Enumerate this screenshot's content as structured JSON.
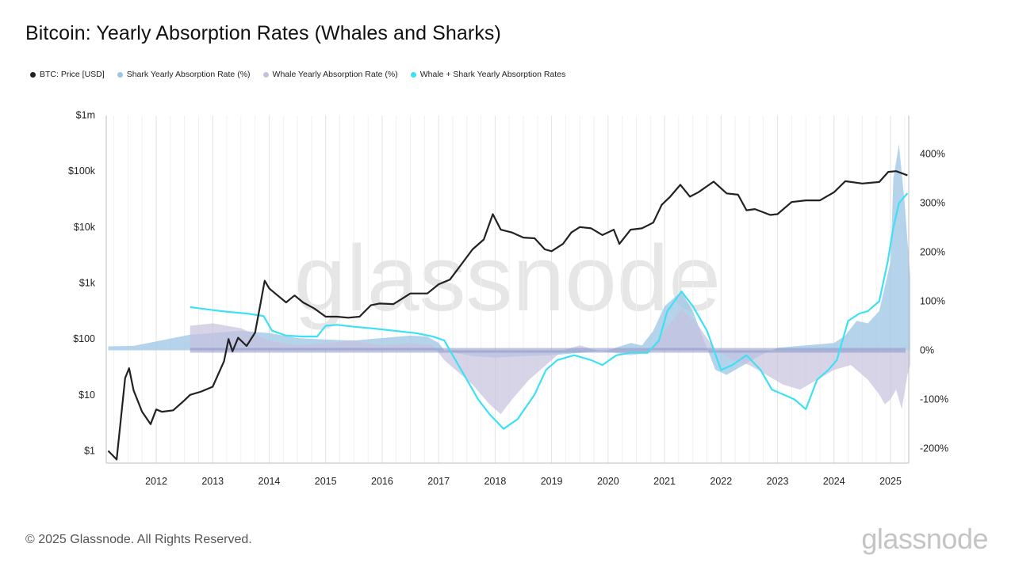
{
  "header": {
    "title": "Bitcoin: Yearly Absorption Rates (Whales and Sharks)"
  },
  "legend": [
    {
      "label": "BTC: Price [USD]",
      "color": "#222222"
    },
    {
      "label": "Shark Yearly Absorption Rate (%)",
      "color": "#9cc6e4"
    },
    {
      "label": "Whale Yearly Absorption Rate (%)",
      "color": "#c6c2de"
    },
    {
      "label": "Whale + Shark Yearly Absorption Rates",
      "color": "#3ee0f4"
    }
  ],
  "watermark": "glassnode",
  "footer": {
    "copyright": "© 2025 Glassnode. All Rights Reserved.",
    "brand": "glassnode"
  },
  "chart_data": {
    "type": "line",
    "title": "Bitcoin: Yearly Absorption Rates (Whales and Sharks)",
    "x_axis": {
      "type": "time",
      "range": [
        2011.15,
        2025.35
      ],
      "tick_labels": [
        "2012",
        "2013",
        "2014",
        "2015",
        "2016",
        "2017",
        "2018",
        "2019",
        "2020",
        "2021",
        "2022",
        "2023",
        "2024",
        "2025"
      ]
    },
    "y_left": {
      "scale": "log",
      "range": [
        1,
        1000000
      ],
      "tick_labels": [
        "$1",
        "$10",
        "$100",
        "$1k",
        "$10k",
        "$100k",
        "$1m"
      ]
    },
    "y_right": {
      "scale": "linear",
      "range": [
        -220,
        440
      ],
      "tick_labels": [
        "-200%",
        "-100%",
        "0%",
        "100%",
        "200%",
        "300%",
        "400%"
      ]
    },
    "grid": "vertical",
    "legend_position": "top-left",
    "series": [
      {
        "name": "BTC: Price [USD]",
        "axis": "left",
        "color": "#222222",
        "x": [
          2011.15,
          2011.3,
          2011.45,
          2011.52,
          2011.6,
          2011.75,
          2011.9,
          2012.0,
          2012.1,
          2012.3,
          2012.5,
          2012.6,
          2012.8,
          2013.0,
          2013.2,
          2013.28,
          2013.35,
          2013.45,
          2013.6,
          2013.75,
          2013.85,
          2013.92,
          2014.0,
          2014.15,
          2014.3,
          2014.45,
          2014.6,
          2014.8,
          2015.0,
          2015.2,
          2015.4,
          2015.6,
          2015.8,
          2015.95,
          2016.2,
          2016.5,
          2016.8,
          2017.0,
          2017.2,
          2017.45,
          2017.6,
          2017.8,
          2017.96,
          2018.1,
          2018.3,
          2018.5,
          2018.7,
          2018.88,
          2019.0,
          2019.2,
          2019.35,
          2019.5,
          2019.7,
          2019.9,
          2020.1,
          2020.2,
          2020.4,
          2020.6,
          2020.8,
          2020.95,
          2021.1,
          2021.28,
          2021.45,
          2021.6,
          2021.87,
          2022.1,
          2022.3,
          2022.45,
          2022.6,
          2022.87,
          2023.0,
          2023.25,
          2023.5,
          2023.75,
          2024.0,
          2024.2,
          2024.5,
          2024.8,
          2024.96,
          2025.1,
          2025.3
        ],
        "values": [
          1,
          0.7,
          20,
          30,
          12,
          5,
          3,
          5.5,
          5,
          5.3,
          8,
          10,
          11.5,
          14,
          40,
          100,
          60,
          105,
          75,
          130,
          450,
          1100,
          800,
          600,
          450,
          600,
          450,
          350,
          250,
          250,
          240,
          250,
          400,
          430,
          420,
          650,
          650,
          950,
          1150,
          2500,
          4000,
          6000,
          17000,
          9000,
          8000,
          6500,
          6300,
          4000,
          3700,
          5000,
          8000,
          10000,
          9500,
          7200,
          9000,
          5000,
          9000,
          9500,
          12000,
          25000,
          35000,
          57000,
          35000,
          42000,
          65000,
          40000,
          38000,
          20000,
          21000,
          16500,
          17000,
          28000,
          30000,
          30000,
          42000,
          66000,
          60000,
          64000,
          97000,
          100000,
          84000
        ]
      },
      {
        "name": "Shark Yearly Absorption Rate (%)",
        "axis": "right",
        "color": "#9cc6e4",
        "style": "area",
        "x": [
          2011.15,
          2011.6,
          2012.0,
          2012.3,
          2012.6,
          2013.0,
          2013.5,
          2014.0,
          2014.5,
          2015.0,
          2015.5,
          2016.0,
          2016.5,
          2016.8,
          2017.0,
          2017.1,
          2017.3,
          2017.6,
          2018.0,
          2018.5,
          2019.0,
          2019.5,
          2020.0,
          2020.4,
          2020.6,
          2020.8,
          2021.0,
          2021.3,
          2021.5,
          2021.7,
          2021.9,
          2022.1,
          2022.4,
          2022.7,
          2023.0,
          2023.5,
          2024.0,
          2024.2,
          2024.4,
          2024.6,
          2024.8,
          2025.0,
          2025.05,
          2025.15,
          2025.25,
          2025.35
        ],
        "values": [
          8,
          9,
          18,
          25,
          32,
          35,
          40,
          35,
          25,
          22,
          20,
          25,
          30,
          28,
          15,
          0,
          -5,
          -12,
          -15,
          -12,
          -10,
          -5,
          0,
          15,
          10,
          40,
          90,
          120,
          80,
          20,
          -40,
          -50,
          -30,
          -10,
          5,
          10,
          15,
          30,
          60,
          55,
          80,
          180,
          350,
          420,
          300,
          150
        ]
      },
      {
        "name": "Whale Yearly Absorption Rate (%)",
        "axis": "right",
        "color": "#c6c2de",
        "style": "area",
        "x": [
          2012.6,
          2013.0,
          2013.5,
          2014.0,
          2014.5,
          2015.0,
          2015.5,
          2016.0,
          2016.5,
          2016.9,
          2017.1,
          2017.3,
          2017.6,
          2017.9,
          2018.1,
          2018.3,
          2018.6,
          2018.9,
          2019.2,
          2019.5,
          2019.8,
          2020.1,
          2020.4,
          2020.7,
          2021.0,
          2021.3,
          2021.6,
          2021.9,
          2022.2,
          2022.5,
          2022.8,
          2023.1,
          2023.4,
          2023.7,
          2024.0,
          2024.3,
          2024.6,
          2024.8,
          2024.9,
          2025.0,
          2025.1,
          2025.2,
          2025.3,
          2025.35
        ],
        "values": [
          50,
          55,
          45,
          20,
          10,
          15,
          20,
          10,
          15,
          10,
          -20,
          -40,
          -70,
          -110,
          -130,
          -100,
          -60,
          -30,
          0,
          10,
          0,
          -5,
          -10,
          -5,
          40,
          85,
          50,
          0,
          -20,
          -30,
          -50,
          -70,
          -80,
          -60,
          -40,
          -30,
          -60,
          -90,
          -110,
          -100,
          -80,
          -120,
          -50,
          -30
        ]
      },
      {
        "name": "Whale + Shark Yearly Absorption Rates",
        "axis": "right",
        "color": "#3ee0f4",
        "x": [
          2012.6,
          2012.8,
          2013.0,
          2013.3,
          2013.6,
          2013.9,
          2014.05,
          2014.3,
          2014.6,
          2014.85,
          2015.0,
          2015.2,
          2015.5,
          2015.8,
          2016.2,
          2016.6,
          2016.9,
          2017.1,
          2017.3,
          2017.5,
          2017.7,
          2017.9,
          2018.15,
          2018.4,
          2018.7,
          2018.9,
          2019.1,
          2019.4,
          2019.7,
          2019.9,
          2020.15,
          2020.4,
          2020.7,
          2020.9,
          2021.05,
          2021.3,
          2021.5,
          2021.75,
          2022.0,
          2022.2,
          2022.45,
          2022.7,
          2022.9,
          2023.1,
          2023.3,
          2023.5,
          2023.7,
          2023.9,
          2024.05,
          2024.25,
          2024.45,
          2024.6,
          2024.8,
          2024.95,
          2025.05,
          2025.15,
          2025.3
        ],
        "values": [
          88,
          85,
          82,
          78,
          75,
          70,
          40,
          30,
          28,
          28,
          50,
          52,
          48,
          45,
          40,
          35,
          28,
          20,
          -20,
          -60,
          -100,
          -130,
          -160,
          -140,
          -90,
          -40,
          -20,
          -10,
          -20,
          -30,
          -10,
          -5,
          -5,
          20,
          80,
          120,
          90,
          40,
          -40,
          -30,
          -10,
          -40,
          -80,
          -90,
          -100,
          -120,
          -60,
          -40,
          -20,
          60,
          75,
          80,
          100,
          180,
          250,
          300,
          320
        ]
      }
    ]
  }
}
